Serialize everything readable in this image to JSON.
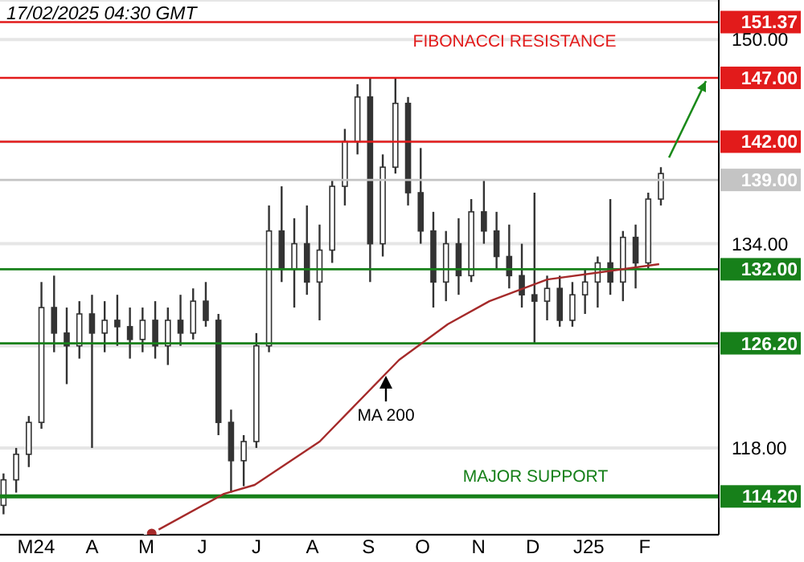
{
  "chart_data": {
    "type": "candlestick",
    "title": "17/02/2025 04:30 GMT",
    "color": "#333333",
    "x": [
      "2024-02-12",
      "2024-02-19",
      "2024-02-26",
      "2024-03-04",
      "2024-03-11",
      "2024-03-18",
      "2024-03-25",
      "2024-04-01",
      "2024-04-08",
      "2024-04-15",
      "2024-04-22",
      "2024-04-29",
      "2024-05-06",
      "2024-05-13",
      "2024-05-20",
      "2024-05-27",
      "2024-06-03",
      "2024-06-10",
      "2024-06-17",
      "2024-06-24",
      "2024-07-01",
      "2024-07-08",
      "2024-07-15",
      "2024-07-22",
      "2024-07-29",
      "2024-08-05",
      "2024-08-12",
      "2024-08-19",
      "2024-08-26",
      "2024-09-02",
      "2024-09-09",
      "2024-09-16",
      "2024-09-23",
      "2024-09-30",
      "2024-10-07",
      "2024-10-14",
      "2024-10-21",
      "2024-10-28",
      "2024-11-04",
      "2024-11-11",
      "2024-11-18",
      "2024-11-25",
      "2024-12-02",
      "2024-12-09",
      "2024-12-16",
      "2024-12-23",
      "2024-12-30",
      "2025-01-06",
      "2025-01-13",
      "2025-01-20",
      "2025-01-27",
      "2025-02-03",
      "2025-02-10"
    ],
    "ohlc": [
      [
        113.5,
        116,
        112.8,
        115.5
      ],
      [
        115.5,
        118,
        114.5,
        117.5
      ],
      [
        117.5,
        120.5,
        116.5,
        120
      ],
      [
        120,
        131,
        119.5,
        129
      ],
      [
        129,
        131.5,
        125.5,
        127
      ],
      [
        127,
        129,
        123,
        126
      ],
      [
        126,
        129.5,
        125,
        128.5
      ],
      [
        128.5,
        130,
        118,
        127
      ],
      [
        127,
        129.5,
        125.5,
        128
      ],
      [
        128,
        130,
        126,
        127.5
      ],
      [
        127.5,
        129,
        125,
        126.5
      ],
      [
        126.5,
        129,
        125.5,
        128
      ],
      [
        128,
        129.5,
        125,
        126
      ],
      [
        126,
        129,
        124.5,
        128
      ],
      [
        128,
        130,
        126,
        127
      ],
      [
        127,
        130.5,
        126.5,
        129.5
      ],
      [
        129.5,
        131,
        127.5,
        128
      ],
      [
        128,
        128.5,
        119,
        120
      ],
      [
        120,
        121,
        114.5,
        117
      ],
      [
        117,
        119,
        115,
        118.5
      ],
      [
        118.5,
        127,
        118,
        126
      ],
      [
        126,
        137,
        125.5,
        135
      ],
      [
        135,
        138.5,
        131,
        132
      ],
      [
        132,
        136,
        129,
        134
      ],
      [
        134,
        137,
        130,
        131
      ],
      [
        131,
        135.5,
        128,
        133.5
      ],
      [
        133.5,
        139,
        132.5,
        138.5
      ],
      [
        138.5,
        143,
        137,
        142
      ],
      [
        142,
        146.5,
        141,
        145.5
      ],
      [
        145.5,
        147,
        131,
        134
      ],
      [
        134,
        141,
        133,
        140
      ],
      [
        140,
        147,
        139.5,
        145
      ],
      [
        145,
        145.5,
        137,
        138
      ],
      [
        138,
        141.5,
        134,
        135
      ],
      [
        135,
        136.5,
        129,
        131
      ],
      [
        131,
        135,
        129.5,
        134
      ],
      [
        134,
        136,
        130,
        131.5
      ],
      [
        131.5,
        137.5,
        131,
        136.5
      ],
      [
        136.5,
        139,
        134,
        135
      ],
      [
        135,
        136.5,
        132,
        133
      ],
      [
        133,
        135.5,
        130.5,
        131.5
      ],
      [
        131.5,
        134,
        129,
        130
      ],
      [
        130,
        138,
        126.2,
        129.5
      ],
      [
        129.5,
        131.5,
        128,
        130.5
      ],
      [
        130.5,
        131.5,
        127.5,
        128
      ],
      [
        128,
        131,
        127.5,
        130
      ],
      [
        130,
        132,
        128.5,
        131
      ],
      [
        131,
        133,
        129,
        132.5
      ],
      [
        132.5,
        137.5,
        130,
        131
      ],
      [
        131,
        135,
        129.5,
        134.5
      ],
      [
        134.5,
        135.5,
        130.5,
        132.5
      ],
      [
        132.5,
        138,
        132,
        137.5
      ],
      [
        137.5,
        140,
        137,
        139.5
      ]
    ],
    "series": [
      {
        "type": "line",
        "color": "#a52a2a",
        "x": [
          "2024-05-04",
          "2024-06-13",
          "2024-06-30",
          "2024-08-05",
          "2024-09-18",
          "2024-10-15",
          "2024-11-07",
          "2024-12-09",
          "2025-02-09"
        ],
        "values": [
          111.3,
          114.4,
          115.1,
          118.5,
          124.9,
          127.7,
          129.5,
          131.2,
          132.4
        ]
      }
    ],
    "xlim": [
      "2024-02-10",
      "2025-03-14"
    ],
    "xticks": [
      {
        "value": "2024-03-01",
        "label": "M24"
      },
      {
        "value": "2024-04-01",
        "label": "A"
      },
      {
        "value": "2024-05-01",
        "label": "M"
      },
      {
        "value": "2024-06-01",
        "label": "J"
      },
      {
        "value": "2024-07-01",
        "label": "J"
      },
      {
        "value": "2024-08-01",
        "label": "A"
      },
      {
        "value": "2024-09-01",
        "label": "S"
      },
      {
        "value": "2024-10-01",
        "label": "O"
      },
      {
        "value": "2024-11-01",
        "label": "N"
      },
      {
        "value": "2024-12-01",
        "label": "D"
      },
      {
        "value": "2025-01-01",
        "label": "J25"
      },
      {
        "value": "2025-02-01",
        "label": "F"
      }
    ],
    "ylim": [
      111.2,
      153.1
    ],
    "yticks": [
      {
        "value": 118,
        "label": "118.00"
      },
      {
        "value": 126,
        "label": null
      },
      {
        "value": 134,
        "label": "134.00"
      },
      {
        "value": 142,
        "label": null
      },
      {
        "value": 150,
        "label": "150.00"
      }
    ],
    "grid": "y",
    "ref_lines": [
      {
        "axis": "y",
        "value": 151.37,
        "label": "151.37",
        "color": "#e21b1b"
      },
      {
        "axis": "y",
        "value": 147,
        "label": "147.00",
        "color": "#e21b1b"
      },
      {
        "axis": "y",
        "value": 142,
        "label": "142.00",
        "color": "#e21b1b"
      },
      {
        "axis": "y",
        "value": 139,
        "label": "139.00",
        "color": "#c4c4c4"
      },
      {
        "axis": "y",
        "value": 132,
        "label": "132.00",
        "color": "#17801a"
      },
      {
        "axis": "y",
        "value": 126.2,
        "label": "126.20",
        "color": "#17801a"
      },
      {
        "axis": "y",
        "value": 114.2,
        "label": "114.20",
        "color": "#17801a"
      }
    ],
    "annotations": [
      "FIBONACCI RESISTANCE",
      "MA 200",
      "MAJOR SUPPORT"
    ]
  }
}
